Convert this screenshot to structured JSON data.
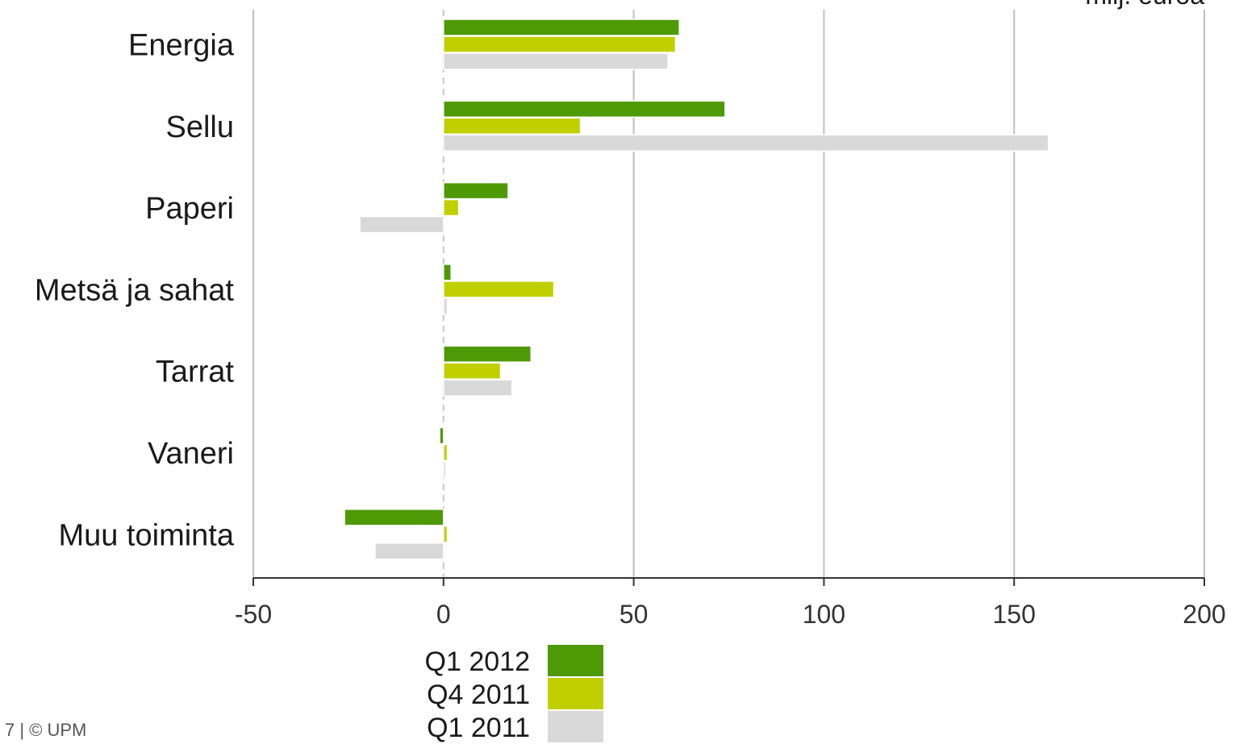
{
  "footer": "7 | © UPM",
  "chart_data": {
    "type": "bar",
    "orientation": "horizontal",
    "unit_label": "milj. euroa",
    "categories": [
      "Energia",
      "Sellu",
      "Paperi",
      "Metsä ja sahat",
      "Tarrat",
      "Vaneri",
      "Muu toiminta"
    ],
    "series": [
      {
        "name": "Q1 2012",
        "color": "#4e9a06",
        "values": [
          62,
          74,
          17,
          2,
          23,
          -1,
          -26
        ]
      },
      {
        "name": "Q4 2011",
        "color": "#c0cf00",
        "values": [
          61,
          36,
          4,
          29,
          15,
          1,
          1
        ]
      },
      {
        "name": "Q1 2011",
        "color": "#d9d9d9",
        "values": [
          59,
          159,
          -22,
          1,
          18,
          0,
          -18
        ]
      }
    ],
    "xlim": [
      -50,
      200
    ],
    "xticks": [
      "-50",
      "0",
      "50",
      "100",
      "150",
      "200"
    ],
    "xtick_values": [
      -50,
      0,
      50,
      100,
      150,
      200
    ],
    "grid": true,
    "legend_position": "bottom"
  }
}
